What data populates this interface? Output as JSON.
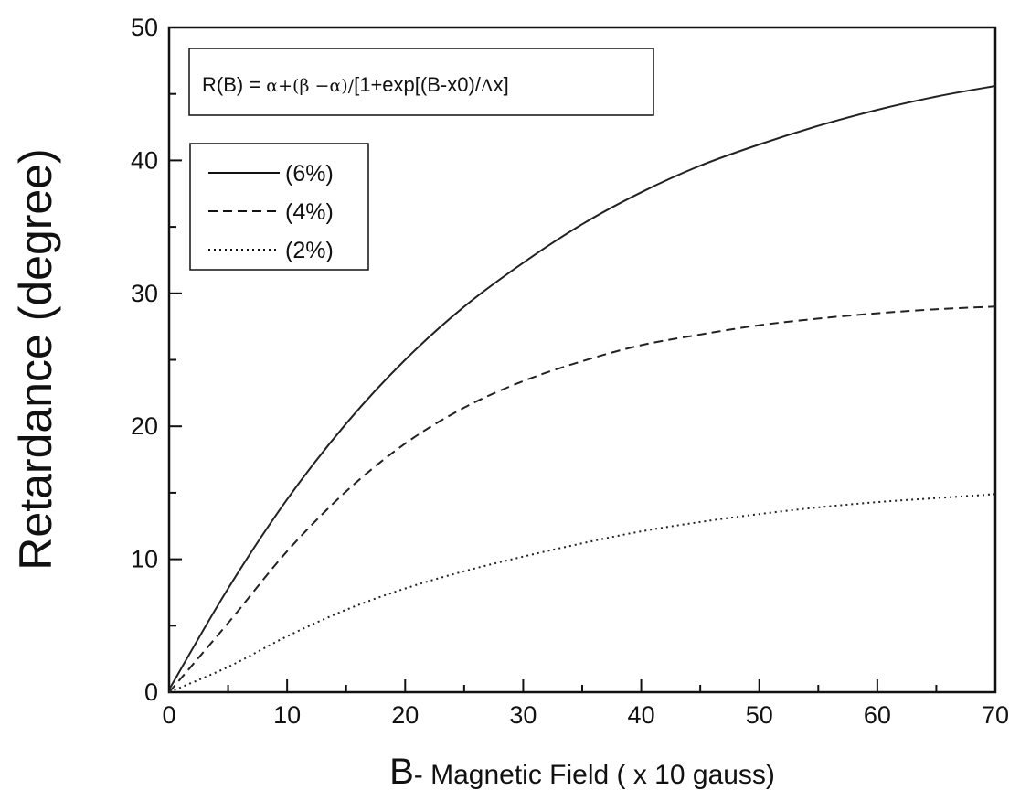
{
  "chart_data": {
    "type": "line",
    "xlabel_letter": "B",
    "xlabel_rest": "- Magnetic Field ( x 10 gauss)",
    "ylabel": "Retardance (degree)",
    "xlim": [
      0,
      70
    ],
    "ylim": [
      0,
      50
    ],
    "xticks": [
      "0",
      "10",
      "20",
      "30",
      "40",
      "50",
      "60",
      "70"
    ],
    "yticks": [
      "0",
      "10",
      "20",
      "30",
      "40",
      "50"
    ],
    "xtick_values": [
      0,
      10,
      20,
      30,
      40,
      50,
      60,
      70
    ],
    "ytick_values": [
      0,
      10,
      20,
      30,
      40,
      50
    ],
    "x_minor_step": 5,
    "y_minor_step": 5,
    "grid": false,
    "legend_position": "top-left",
    "equation": {
      "prefix": "R(B) = ",
      "alpha": "α",
      "plus_paren": "+(",
      "beta": "β",
      "minus": " −",
      "alpha2": "α",
      "close": ")/",
      "rest": "[1+exp[(B-x0)/",
      "delta": "Δ",
      "x": "x]"
    },
    "x": [
      0,
      5,
      10,
      15,
      20,
      25,
      30,
      35,
      40,
      45,
      50,
      55,
      60,
      65,
      70
    ],
    "series": [
      {
        "name": "(6%)",
        "style": "solid",
        "values": [
          0.2,
          7.8,
          14.5,
          20.2,
          25.0,
          29.0,
          32.3,
          35.2,
          37.6,
          39.6,
          41.2,
          42.6,
          43.8,
          44.8,
          45.6
        ]
      },
      {
        "name": "(4%)",
        "style": "dashed",
        "values": [
          0.0,
          5.2,
          10.6,
          15.1,
          18.7,
          21.4,
          23.4,
          24.9,
          26.1,
          26.9,
          27.6,
          28.1,
          28.5,
          28.8,
          29.0
        ]
      },
      {
        "name": "(2%)",
        "style": "dotted",
        "values": [
          0.0,
          1.9,
          4.2,
          6.2,
          7.8,
          9.1,
          10.2,
          11.2,
          12.1,
          12.8,
          13.4,
          13.9,
          14.3,
          14.6,
          14.9
        ]
      }
    ]
  }
}
